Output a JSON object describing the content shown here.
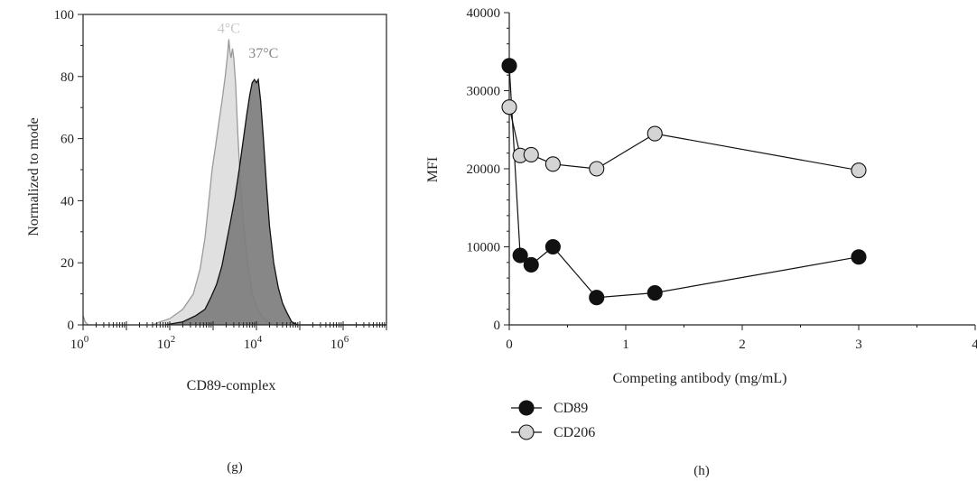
{
  "chart_data": [
    {
      "type": "area",
      "panel_label": "(g)",
      "xlabel": "CD89-complex",
      "ylabel": "Normalized to mode",
      "x_scale": "log10",
      "xlim": [
        1,
        10000000
      ],
      "ylim": [
        0,
        100
      ],
      "x_ticks": [
        {
          "value": 1,
          "base": "10",
          "exp": "0"
        },
        {
          "value": 100,
          "base": "10",
          "exp": "2"
        },
        {
          "value": 10000,
          "base": "10",
          "exp": "4"
        },
        {
          "value": 1000000,
          "base": "10",
          "exp": "6"
        }
      ],
      "y_ticks": [
        "0",
        "20",
        "40",
        "60",
        "80",
        "100"
      ],
      "grid": false,
      "series": [
        {
          "name": "4°C",
          "label_text": "4",
          "label_unit": "°C",
          "label_at": {
            "x": 2300,
            "y": 94
          },
          "fill": "#e0e0e0",
          "stroke": "#9a9a9a",
          "label_color": "#c8c8c8",
          "points": [
            [
              1,
              3
            ],
            [
              1.12,
              1
            ],
            [
              1.3,
              0
            ],
            [
              10,
              0
            ],
            [
              40,
              0
            ],
            [
              60,
              1
            ],
            [
              100,
              2
            ],
            [
              200,
              5
            ],
            [
              350,
              10
            ],
            [
              500,
              18
            ],
            [
              650,
              28
            ],
            [
              800,
              40
            ],
            [
              950,
              50
            ],
            [
              1150,
              58
            ],
            [
              1350,
              65
            ],
            [
              1600,
              72
            ],
            [
              1900,
              80
            ],
            [
              2150,
              87
            ],
            [
              2300,
              92
            ],
            [
              2450,
              88
            ],
            [
              2600,
              86
            ],
            [
              2800,
              89
            ],
            [
              3000,
              86
            ],
            [
              3300,
              78
            ],
            [
              3700,
              62
            ],
            [
              4300,
              45
            ],
            [
              5200,
              30
            ],
            [
              6500,
              18
            ],
            [
              8000,
              10
            ],
            [
              10000,
              6
            ],
            [
              13000,
              3
            ],
            [
              18000,
              1
            ],
            [
              25000,
              0
            ],
            [
              10000000,
              0
            ]
          ]
        },
        {
          "name": "37°C",
          "label_text": "37",
          "label_unit": "°C",
          "label_at": {
            "x": 14500,
            "y": 86
          },
          "fill": "#7d7d7d",
          "stroke": "#111111",
          "label_color": "#8a8a8a",
          "points": [
            [
              80,
              0
            ],
            [
              200,
              1
            ],
            [
              400,
              3
            ],
            [
              650,
              5
            ],
            [
              900,
              9
            ],
            [
              1200,
              13
            ],
            [
              1600,
              19
            ],
            [
              2000,
              26
            ],
            [
              2500,
              33
            ],
            [
              3200,
              41
            ],
            [
              4000,
              50
            ],
            [
              5000,
              60
            ],
            [
              6000,
              68
            ],
            [
              7000,
              74
            ],
            [
              8000,
              78
            ],
            [
              9000,
              79
            ],
            [
              10000,
              78
            ],
            [
              11000,
              79
            ],
            [
              12500,
              72
            ],
            [
              14500,
              60
            ],
            [
              17000,
              45
            ],
            [
              20000,
              32
            ],
            [
              25000,
              20
            ],
            [
              32000,
              12
            ],
            [
              40000,
              7
            ],
            [
              50000,
              4
            ],
            [
              65000,
              1
            ],
            [
              90000,
              0
            ],
            [
              10000000,
              0
            ]
          ]
        }
      ]
    },
    {
      "type": "line",
      "panel_label": "(h)",
      "xlabel": "Competing antibody (mg/mL)",
      "ylabel": "MFI",
      "xlim": [
        0,
        4
      ],
      "ylim": [
        0,
        40000
      ],
      "x_ticks": [
        "0",
        "1",
        "2",
        "3",
        "4"
      ],
      "y_ticks": [
        "0",
        "10000",
        "20000",
        "30000",
        "40000"
      ],
      "grid": false,
      "legend_position": "bottom-left",
      "series": [
        {
          "name": "CD89",
          "color": "#111111",
          "x": [
            0,
            0.094,
            0.188,
            0.375,
            0.75,
            1.25,
            3
          ],
          "y": [
            33200,
            8900,
            7700,
            10000,
            3500,
            4100,
            8700
          ]
        },
        {
          "name": "CD206",
          "color": "#d4d4d4",
          "x": [
            0,
            0.094,
            0.188,
            0.375,
            0.75,
            1.25,
            3
          ],
          "y": [
            27900,
            21700,
            21800,
            20600,
            20000,
            24500,
            19800
          ]
        }
      ]
    }
  ]
}
